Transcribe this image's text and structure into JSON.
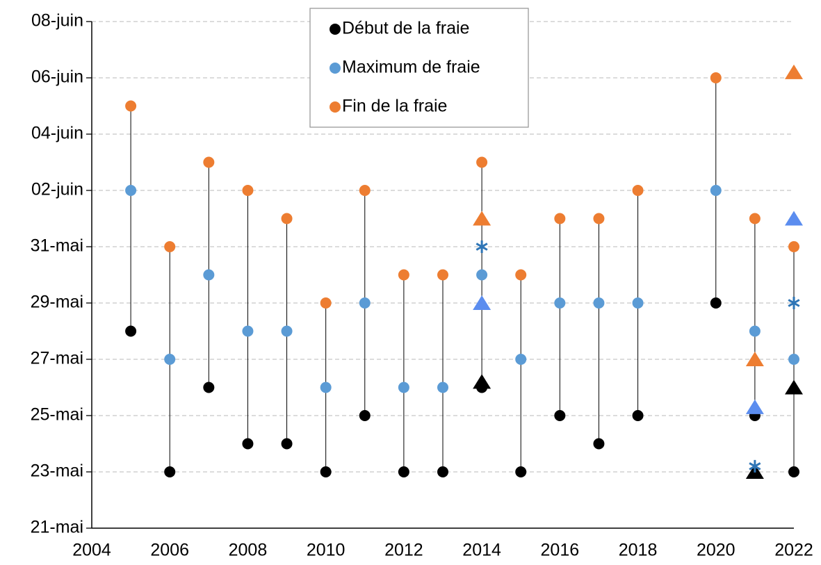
{
  "chart_data": {
    "type": "scatter",
    "x": [
      2005,
      2006,
      2007,
      2008,
      2009,
      2010,
      2011,
      2012,
      2013,
      2014,
      2015,
      2016,
      2017,
      2018,
      2020,
      2021,
      2022
    ],
    "series": [
      {
        "name": "Début de la fraie",
        "color": "#000000",
        "values": [
          28,
          23,
          26,
          24,
          24,
          23,
          25,
          23,
          23,
          26,
          23,
          25,
          24,
          25,
          29,
          25,
          23
        ]
      },
      {
        "name": "Maximum de fraie",
        "color": "#5b9bd5",
        "values": [
          33,
          27,
          30,
          28,
          28,
          26,
          29,
          26,
          26,
          30,
          27,
          29,
          29,
          29,
          33,
          28,
          27
        ]
      },
      {
        "name": "Fin de la fraie",
        "color": "#ed7d31",
        "values": [
          36,
          31,
          34,
          33,
          32,
          29,
          33,
          30,
          30,
          34,
          30,
          32,
          32,
          33,
          37,
          32,
          31
        ]
      }
    ],
    "extra_markers": [
      {
        "marker": "triangle",
        "color": "#000000",
        "x": [
          2014,
          2021,
          2022
        ],
        "values": [
          26.2,
          23,
          26
        ]
      },
      {
        "marker": "triangle",
        "color": "#5b8def",
        "x": [
          2014,
          2021,
          2022
        ],
        "values": [
          29,
          25.3,
          32
        ]
      },
      {
        "marker": "triangle",
        "color": "#ed7d31",
        "x": [
          2014,
          2021,
          2022
        ],
        "values": [
          32,
          27,
          37.2
        ]
      },
      {
        "marker": "asterisk",
        "color": "#2e75b6",
        "x": [
          2014,
          2021,
          2022
        ],
        "values": [
          31,
          23.2,
          29
        ]
      }
    ],
    "range_lines": true,
    "xlim": [
      2004,
      2022
    ],
    "xticks": [
      2004,
      2006,
      2008,
      2010,
      2012,
      2014,
      2016,
      2018,
      2020,
      2022
    ],
    "ylim": [
      21,
      39
    ],
    "yticks": [
      {
        "value": 21,
        "label": "21-mai"
      },
      {
        "value": 23,
        "label": "23-mai"
      },
      {
        "value": 25,
        "label": "25-mai"
      },
      {
        "value": 27,
        "label": "27-mai"
      },
      {
        "value": 29,
        "label": "29-mai"
      },
      {
        "value": 31,
        "label": "31-mai"
      },
      {
        "value": 33,
        "label": "02-juin"
      },
      {
        "value": 35,
        "label": "04-juin"
      },
      {
        "value": 37,
        "label": "06-juin"
      },
      {
        "value": 39,
        "label": "08-juin"
      }
    ],
    "grid": true,
    "legend": "top"
  }
}
